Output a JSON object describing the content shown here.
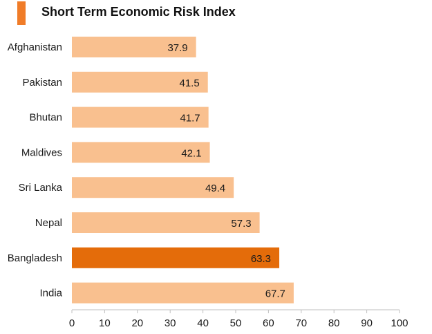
{
  "colors": {
    "bar": "#f9c08f",
    "bar_highlight": "#e46c0a",
    "title_marker": "#f07c28",
    "axis": "#bfbfbf",
    "text": "#1a1a1a"
  },
  "chart_data": {
    "type": "bar",
    "orientation": "horizontal",
    "title": "Short Term Economic Risk Index",
    "xlabel": "",
    "ylabel": "",
    "categories": [
      "Afghanistan",
      "Pakistan",
      "Bhutan",
      "Maldives",
      "Sri Lanka",
      "Nepal",
      "Bangladesh",
      "India"
    ],
    "values": [
      37.9,
      41.5,
      41.7,
      42.1,
      49.4,
      57.3,
      63.3,
      67.7
    ],
    "value_labels": [
      "37.9",
      "41.5",
      "41.7",
      "42.1",
      "49.4",
      "57.3",
      "63.3",
      "67.7"
    ],
    "highlight": "Bangladesh",
    "xlim": [
      0,
      100
    ],
    "xticks": [
      0,
      10,
      20,
      30,
      40,
      50,
      60,
      70,
      80,
      90,
      100
    ],
    "grid": false,
    "legend": "none"
  }
}
